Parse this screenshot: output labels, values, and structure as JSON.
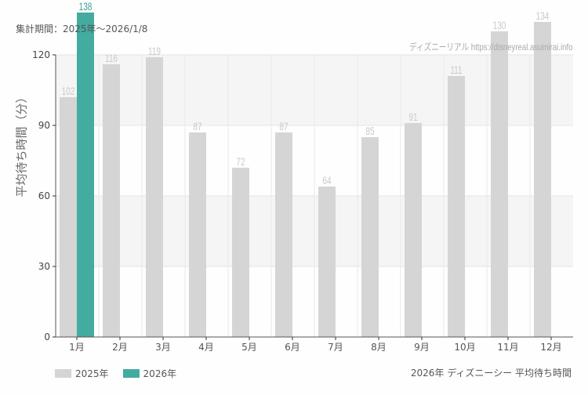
{
  "header": {
    "period": "集計期間：2025年～2026/1/8",
    "credit": "ディズニーリアル https://disneyreal.asumirai.info"
  },
  "footer": {
    "caption": "2026年 ディズニーシー 平均待ち時間"
  },
  "legend": [
    {
      "label": "2025年",
      "color": "#d4d5d4"
    },
    {
      "label": "2026年",
      "color": "#44aba1"
    }
  ],
  "chart_data": {
    "type": "bar",
    "title": "2026年 ディズニーシー 平均待ち時間",
    "subtitle": "集計期間：2025年～2026/1/8",
    "xlabel": "",
    "ylabel": "平均待ち時間（分）",
    "ylim": [
      0,
      120
    ],
    "yticks": [
      0,
      30,
      60,
      90,
      120
    ],
    "grid": true,
    "legend_position": "bottom-left",
    "categories": [
      "1月",
      "2月",
      "3月",
      "4月",
      "5月",
      "6月",
      "7月",
      "8月",
      "9月",
      "10月",
      "11月",
      "12月"
    ],
    "series": [
      {
        "name": "2025年",
        "color": "#d4d5d4",
        "values": [
          102,
          116,
          119,
          87,
          72,
          87,
          64,
          85,
          91,
          111,
          130,
          134
        ]
      },
      {
        "name": "2026年",
        "color": "#44aba1",
        "values": [
          138,
          null,
          null,
          null,
          null,
          null,
          null,
          null,
          null,
          null,
          null,
          null
        ]
      }
    ]
  }
}
